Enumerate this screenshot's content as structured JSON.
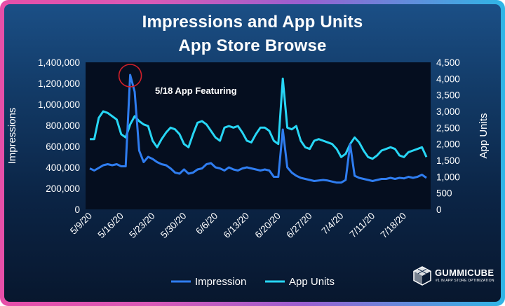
{
  "chart_data": {
    "type": "line",
    "title": "Impressions and App Units",
    "subtitle": "App Store Browse",
    "ylabel_left": "Impressions",
    "ylabel_right": "App Units",
    "ylim_left": [
      0,
      1400000
    ],
    "ylim_right": [
      0,
      4500
    ],
    "yticks_left": [
      "0",
      "200,000",
      "400,000",
      "600,000",
      "800,000",
      "1,000,000",
      "1,200,000",
      "1,400,000"
    ],
    "yticks_right": [
      "0",
      "500",
      "1,000",
      "1,500",
      "2,000",
      "2,500",
      "3,000",
      "3,500",
      "4,000",
      "4,500"
    ],
    "x_tick_labels": [
      "5/9/20",
      "5/16/20",
      "5/23/20",
      "5/30/20",
      "6/6/20",
      "6/13/20",
      "6/20/20",
      "6/27/20",
      "7/4/20",
      "7/11/20",
      "7/18/20"
    ],
    "x_tick_positions": [
      0,
      7,
      14,
      21,
      28,
      35,
      42,
      49,
      56,
      63,
      70
    ],
    "x_count": 76,
    "grid": false,
    "legend_position": "bottom",
    "annotation": "5/18 App Featuring",
    "annotation_index": 9,
    "colors": {
      "impression": "#2f7df0",
      "app_units": "#27d6f5",
      "highlight": "#d2202a"
    },
    "series": [
      {
        "name": "Impression",
        "axis": "left",
        "values": [
          390000,
          370000,
          395000,
          420000,
          430000,
          420000,
          430000,
          410000,
          410000,
          1280000,
          1120000,
          560000,
          450000,
          500000,
          480000,
          450000,
          430000,
          420000,
          390000,
          350000,
          340000,
          380000,
          340000,
          350000,
          380000,
          390000,
          430000,
          440000,
          400000,
          390000,
          370000,
          400000,
          380000,
          370000,
          390000,
          400000,
          390000,
          380000,
          370000,
          380000,
          370000,
          310000,
          310000,
          760000,
          400000,
          350000,
          320000,
          300000,
          290000,
          280000,
          270000,
          275000,
          280000,
          275000,
          265000,
          255000,
          255000,
          280000,
          620000,
          320000,
          300000,
          290000,
          280000,
          270000,
          280000,
          290000,
          290000,
          300000,
          290000,
          300000,
          295000,
          310000,
          300000,
          310000,
          330000,
          300000
        ]
      },
      {
        "name": "App Units",
        "axis": "right",
        "values": [
          2150,
          2150,
          2800,
          3000,
          2950,
          2850,
          2750,
          2300,
          2200,
          2600,
          2850,
          2700,
          2600,
          2550,
          2100,
          1900,
          2150,
          2350,
          2500,
          2450,
          2300,
          2000,
          1900,
          2300,
          2650,
          2700,
          2600,
          2400,
          2200,
          2100,
          2500,
          2550,
          2500,
          2550,
          2350,
          2100,
          2050,
          2300,
          2500,
          2500,
          2400,
          2100,
          2000,
          4000,
          2500,
          2450,
          2550,
          2100,
          1900,
          1850,
          2100,
          2150,
          2100,
          2050,
          2000,
          1850,
          1600,
          1700,
          2000,
          2200,
          2050,
          1800,
          1600,
          1550,
          1650,
          1800,
          1850,
          1900,
          1850,
          1650,
          1600,
          1750,
          1800,
          1850,
          1900,
          1600
        ]
      }
    ]
  },
  "brand": {
    "name": "GUMMICUBE",
    "tagline": "#1 IN APP STORE OPTIMIZATION"
  }
}
